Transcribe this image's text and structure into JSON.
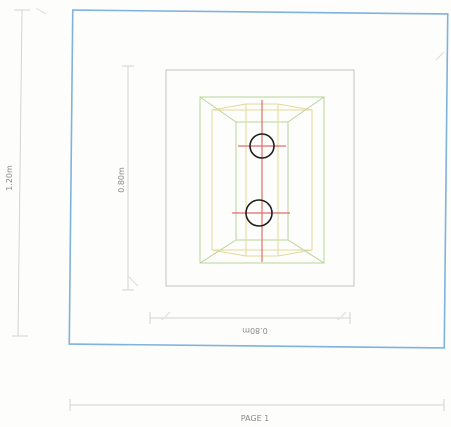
{
  "drawing": {
    "dimensions": {
      "outer_height": "1.20m",
      "inner_height": "0.80m",
      "inner_width": "0.80m",
      "footer_label": "PAGE 1"
    },
    "colors": {
      "outer_frame": "#7fb2dd",
      "inner_frame": "#c8c8c8",
      "green_lines": "#b6d59a",
      "yellow_lines": "#e4d99a",
      "red_axis": "#e26c6c",
      "circles": "#1f1f1f",
      "dim_lines": "#cfcfcf"
    },
    "icons": [
      "circle-symbol-icon",
      "circle-symbol-icon"
    ]
  }
}
